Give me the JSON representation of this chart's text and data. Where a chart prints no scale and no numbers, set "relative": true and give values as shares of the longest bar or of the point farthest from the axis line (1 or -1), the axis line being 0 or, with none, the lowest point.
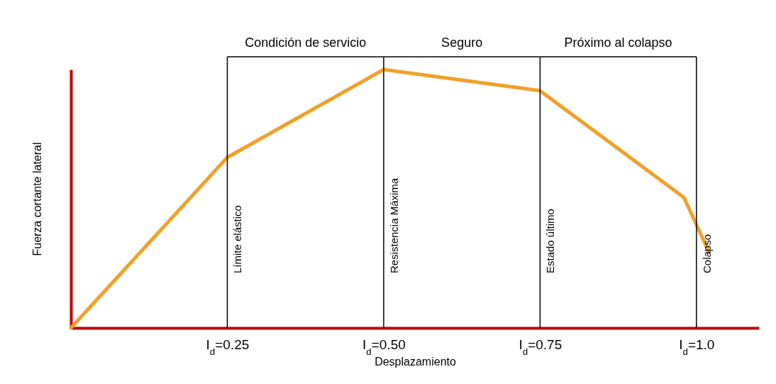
{
  "chart_data": {
    "type": "line",
    "relative": true,
    "xlabel": "Desplazamiento",
    "ylabel": "Fuerza cortante lateral",
    "x": [
      0,
      0.25,
      0.5,
      0.75,
      0.98,
      1.02
    ],
    "series": [
      {
        "color": "#f0a12a",
        "values": [
          0,
          0.66,
          1,
          0.918,
          0.505,
          0.294
        ]
      }
    ],
    "xlim": [
      0,
      1.1
    ],
    "xticks": [
      {
        "value": 0.25,
        "label": "I$_{d}$=0.25"
      },
      {
        "value": 0.5,
        "label": "I$_{d}$=0.50"
      },
      {
        "value": 0.75,
        "label": "I$_{d}$=0.75"
      },
      {
        "value": 1.0,
        "label": "I$_{d}$=1.0"
      }
    ],
    "ref_lines": [
      {
        "axis": "x",
        "value": 0.25,
        "label": "Límite elástico",
        "color": "#000000"
      },
      {
        "axis": "x",
        "value": 0.5,
        "label": "Resistencia Máxima",
        "color": "#000000"
      },
      {
        "axis": "x",
        "value": 0.75,
        "label": "Estado último",
        "color": "#000000"
      },
      {
        "axis": "x",
        "value": 1.0,
        "label": "Colapso",
        "color": "#000000"
      }
    ],
    "annotations": [
      "Condición de servicio",
      "Seguro",
      "Próximo al colapso"
    ],
    "grid": false,
    "marker": "none",
    "line_style": "solid"
  }
}
